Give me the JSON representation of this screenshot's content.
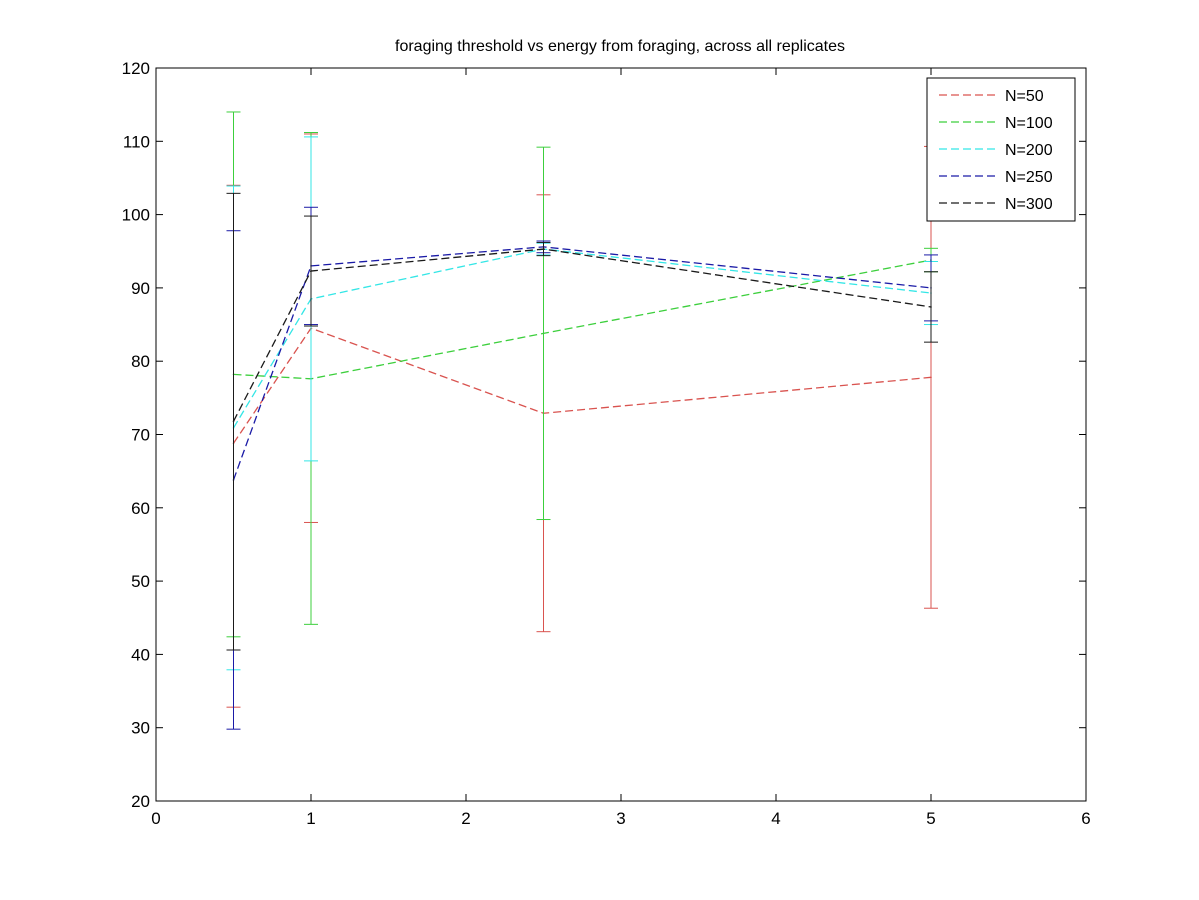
{
  "chart_data": {
    "type": "line",
    "title": "foraging threshold vs energy from foraging, across all replicates",
    "xlabel": "",
    "ylabel": "",
    "xlim": [
      0,
      6
    ],
    "ylim": [
      20,
      120
    ],
    "xticks": [
      0,
      1,
      2,
      3,
      4,
      5,
      6
    ],
    "yticks": [
      20,
      30,
      40,
      50,
      60,
      70,
      80,
      90,
      100,
      110,
      120
    ],
    "xtick_labels": [
      "0",
      "1",
      "2",
      "3",
      "4",
      "5",
      "6"
    ],
    "ytick_labels": [
      "20",
      "30",
      "40",
      "50",
      "60",
      "70",
      "80",
      "90",
      "100",
      "110",
      "120"
    ],
    "grid": false,
    "legend_position": "top-right",
    "line_style": "dashed",
    "error_bars": true,
    "x": [
      0.5,
      1,
      2.5,
      5
    ],
    "series": [
      {
        "name": "N=50",
        "color": "#d9534f",
        "values": [
          68.8,
          84.5,
          72.9,
          77.8
        ],
        "lower": [
          32.8,
          58.0,
          43.1,
          46.3
        ],
        "upper": [
          104.0,
          111.0,
          102.7,
          109.3
        ]
      },
      {
        "name": "N=100",
        "color": "#3ccf3c",
        "values": [
          78.2,
          77.6,
          83.8,
          93.8
        ],
        "lower": [
          42.4,
          44.1,
          58.4,
          92.2
        ],
        "upper": [
          114.0,
          111.2,
          109.2,
          95.4
        ]
      },
      {
        "name": "N=200",
        "color": "#33e6e6",
        "values": [
          70.9,
          88.5,
          95.3,
          89.3
        ],
        "lower": [
          37.9,
          66.4,
          94.5,
          85.0
        ],
        "upper": [
          103.9,
          110.6,
          96.1,
          93.6
        ]
      },
      {
        "name": "N=250",
        "color": "#1a1aa6",
        "values": [
          63.8,
          93.0,
          95.6,
          90.0
        ],
        "lower": [
          29.8,
          85.0,
          94.8,
          85.5
        ],
        "upper": [
          97.8,
          101.0,
          96.4,
          94.5
        ]
      },
      {
        "name": "N=300",
        "color": "#1a1a1a",
        "values": [
          71.8,
          92.3,
          95.3,
          87.4
        ],
        "lower": [
          40.6,
          84.8,
          94.4,
          82.6
        ],
        "upper": [
          102.9,
          99.8,
          96.2,
          92.2
        ]
      }
    ]
  }
}
